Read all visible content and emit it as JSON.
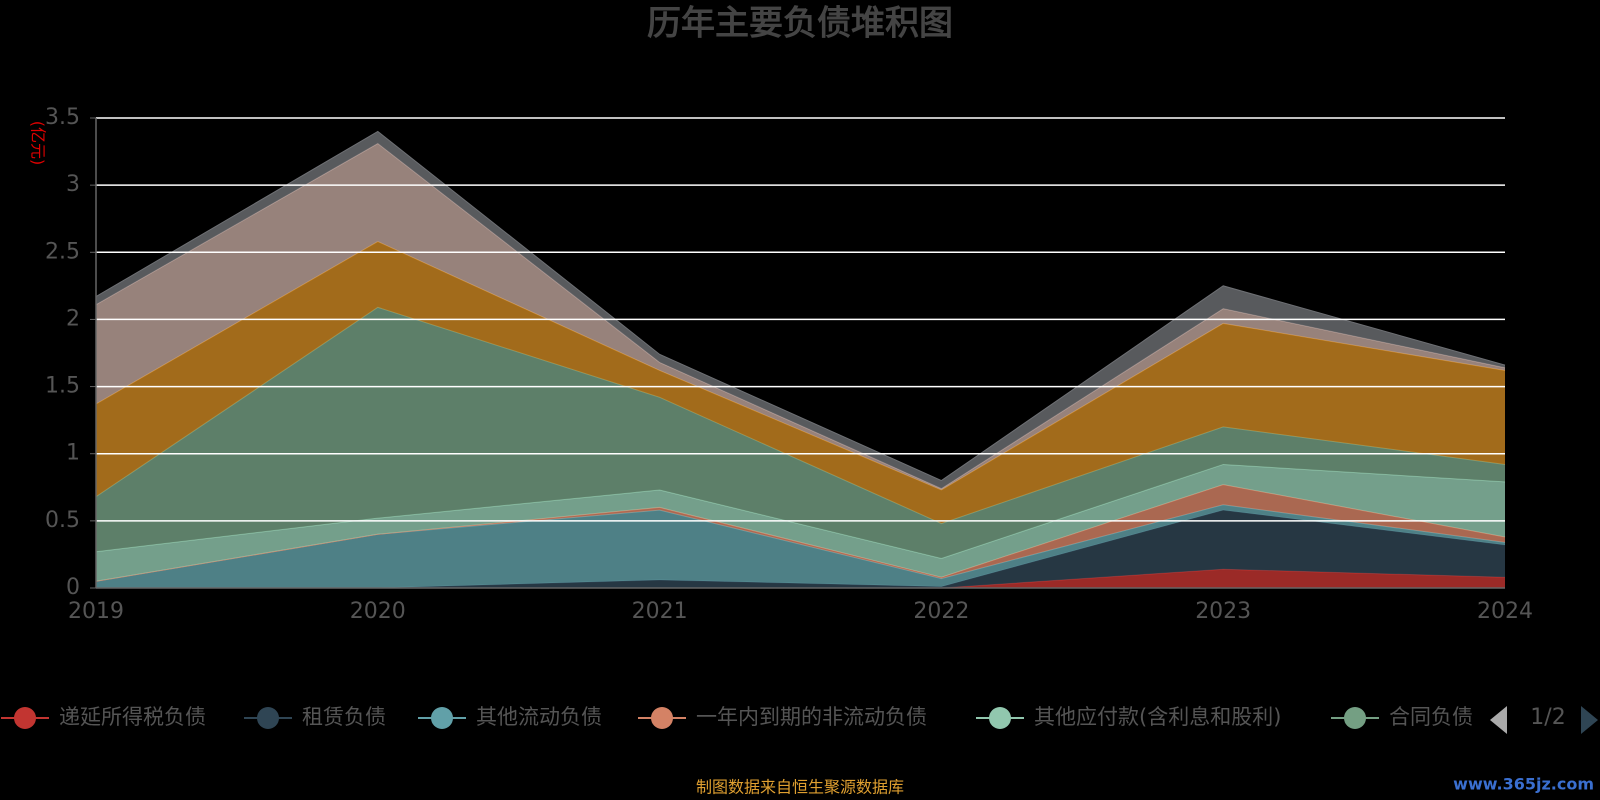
{
  "chart_data": {
    "type": "stacked-area",
    "title": "历年主要负债堆积图",
    "y_unit": "(亿元)",
    "categories": [
      "2019",
      "2020",
      "2021",
      "2022",
      "2023",
      "2024"
    ],
    "ylim": [
      0,
      3.5
    ],
    "yticks": [
      0,
      0.5,
      1,
      1.5,
      2,
      2.5,
      3,
      3.5
    ],
    "grid": true,
    "legend_position": "bottom",
    "legend_page": "1/2",
    "series": [
      {
        "name": "递延所得税负债",
        "color": "#c23531",
        "values": [
          0,
          0,
          0,
          0,
          0.14,
          0.08
        ]
      },
      {
        "name": "租赁负债",
        "color": "#2f4554",
        "values": [
          0,
          0,
          0.06,
          0.01,
          0.44,
          0.24
        ]
      },
      {
        "name": "其他流动负债",
        "color": "#61a0a8",
        "values": [
          0.05,
          0.4,
          0.52,
          0.06,
          0.04,
          0.02
        ]
      },
      {
        "name": "一年内到期的非流动负债",
        "color": "#d48265",
        "values": [
          0,
          0,
          0.02,
          0.01,
          0.15,
          0.04
        ]
      },
      {
        "name": "其他应付款(含利息和股利)",
        "color": "#91c7ae",
        "values": [
          0.22,
          0.12,
          0.13,
          0.14,
          0.15,
          0.41
        ]
      },
      {
        "name": "合同负债",
        "color": "#749f83",
        "values": [
          0.41,
          1.57,
          0.69,
          0.26,
          0.28,
          0.13
        ]
      },
      {
        "color": "#ca8622",
        "values": [
          0.69,
          0.49,
          0.2,
          0.25,
          0.77,
          0.7
        ]
      },
      {
        "color": "#bda29a",
        "values": [
          0.74,
          0.73,
          0.06,
          0.01,
          0.11,
          0.02
        ]
      },
      {
        "color": "#6e7074",
        "values": [
          0.06,
          0.09,
          0.06,
          0.06,
          0.17,
          0.02
        ]
      }
    ],
    "source": "制图数据来自恒生聚源数据库",
    "watermark": "www.365jz.com"
  }
}
